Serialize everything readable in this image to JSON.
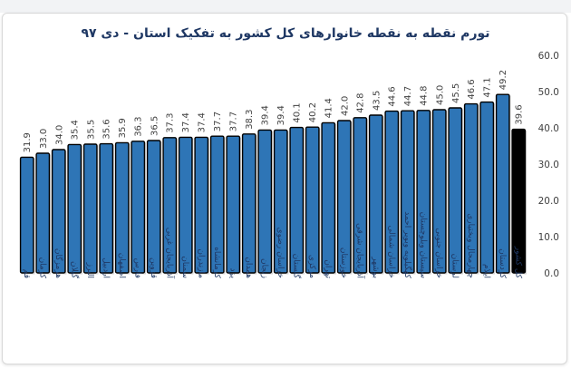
{
  "chart_data": {
    "type": "bar",
    "title": "تورم نقطه به نقطه خانوارهای کل کشور به تفکیک استان - دی ۹۷",
    "xlabel": "",
    "ylabel": "",
    "ylim": [
      0,
      60
    ],
    "yticks": [
      "0.0",
      "10.0",
      "20.0",
      "30.0",
      "40.0",
      "50.0",
      "60.0"
    ],
    "grid": false,
    "legend": "none",
    "categories": [
      "قم",
      "کرمان",
      "هرمزگان",
      "گیلان",
      "البرز",
      "اردبیل",
      "اصفهان",
      "فارس",
      "قزوین",
      "آذربایجان غربی",
      "سمنان",
      "مازندران",
      "کرمانشاه",
      "یزد",
      "همدان",
      "زنجان",
      "خراسان رضوی",
      "گلستان",
      "مرکزی",
      "تهران",
      "خوزستان",
      "آذربایجان شرقی",
      "بوشهر",
      "خراسان شمالی",
      "کهگیلویه وبویر احمد",
      "سیستان وبلوچستان",
      "خراسان جنوبی",
      "لرستان",
      "چهارمحال وبختیاری",
      "ایلام",
      "کردستان",
      "کل کشور"
    ],
    "values": [
      31.9,
      33.0,
      34.0,
      35.4,
      35.5,
      35.6,
      35.9,
      36.3,
      36.5,
      37.3,
      37.4,
      37.4,
      37.7,
      37.7,
      38.3,
      39.4,
      39.4,
      40.1,
      40.2,
      41.4,
      42.0,
      42.8,
      43.5,
      44.6,
      44.7,
      44.8,
      45.0,
      45.5,
      46.6,
      47.1,
      49.2,
      39.6
    ],
    "value_labels": [
      "31.9",
      "33.0",
      "34.0",
      "35.4",
      "35.5",
      "35.6",
      "35.9",
      "36.3",
      "36.5",
      "37.3",
      "37.4",
      "37.4",
      "37.7",
      "37.7",
      "38.3",
      "39.4",
      "39.4",
      "40.1",
      "40.2",
      "41.4",
      "42.0",
      "42.8",
      "43.5",
      "44.6",
      "44.7",
      "44.8",
      "45.0",
      "45.5",
      "46.6",
      "47.1",
      "49.2",
      "39.6"
    ],
    "colors": {
      "province_bar": "#2e75b6",
      "total_bar": "#000000",
      "bar_outline": "#000000",
      "title": "#1f3864",
      "category_text": "#1f3864",
      "axis_text": "#404040"
    }
  }
}
